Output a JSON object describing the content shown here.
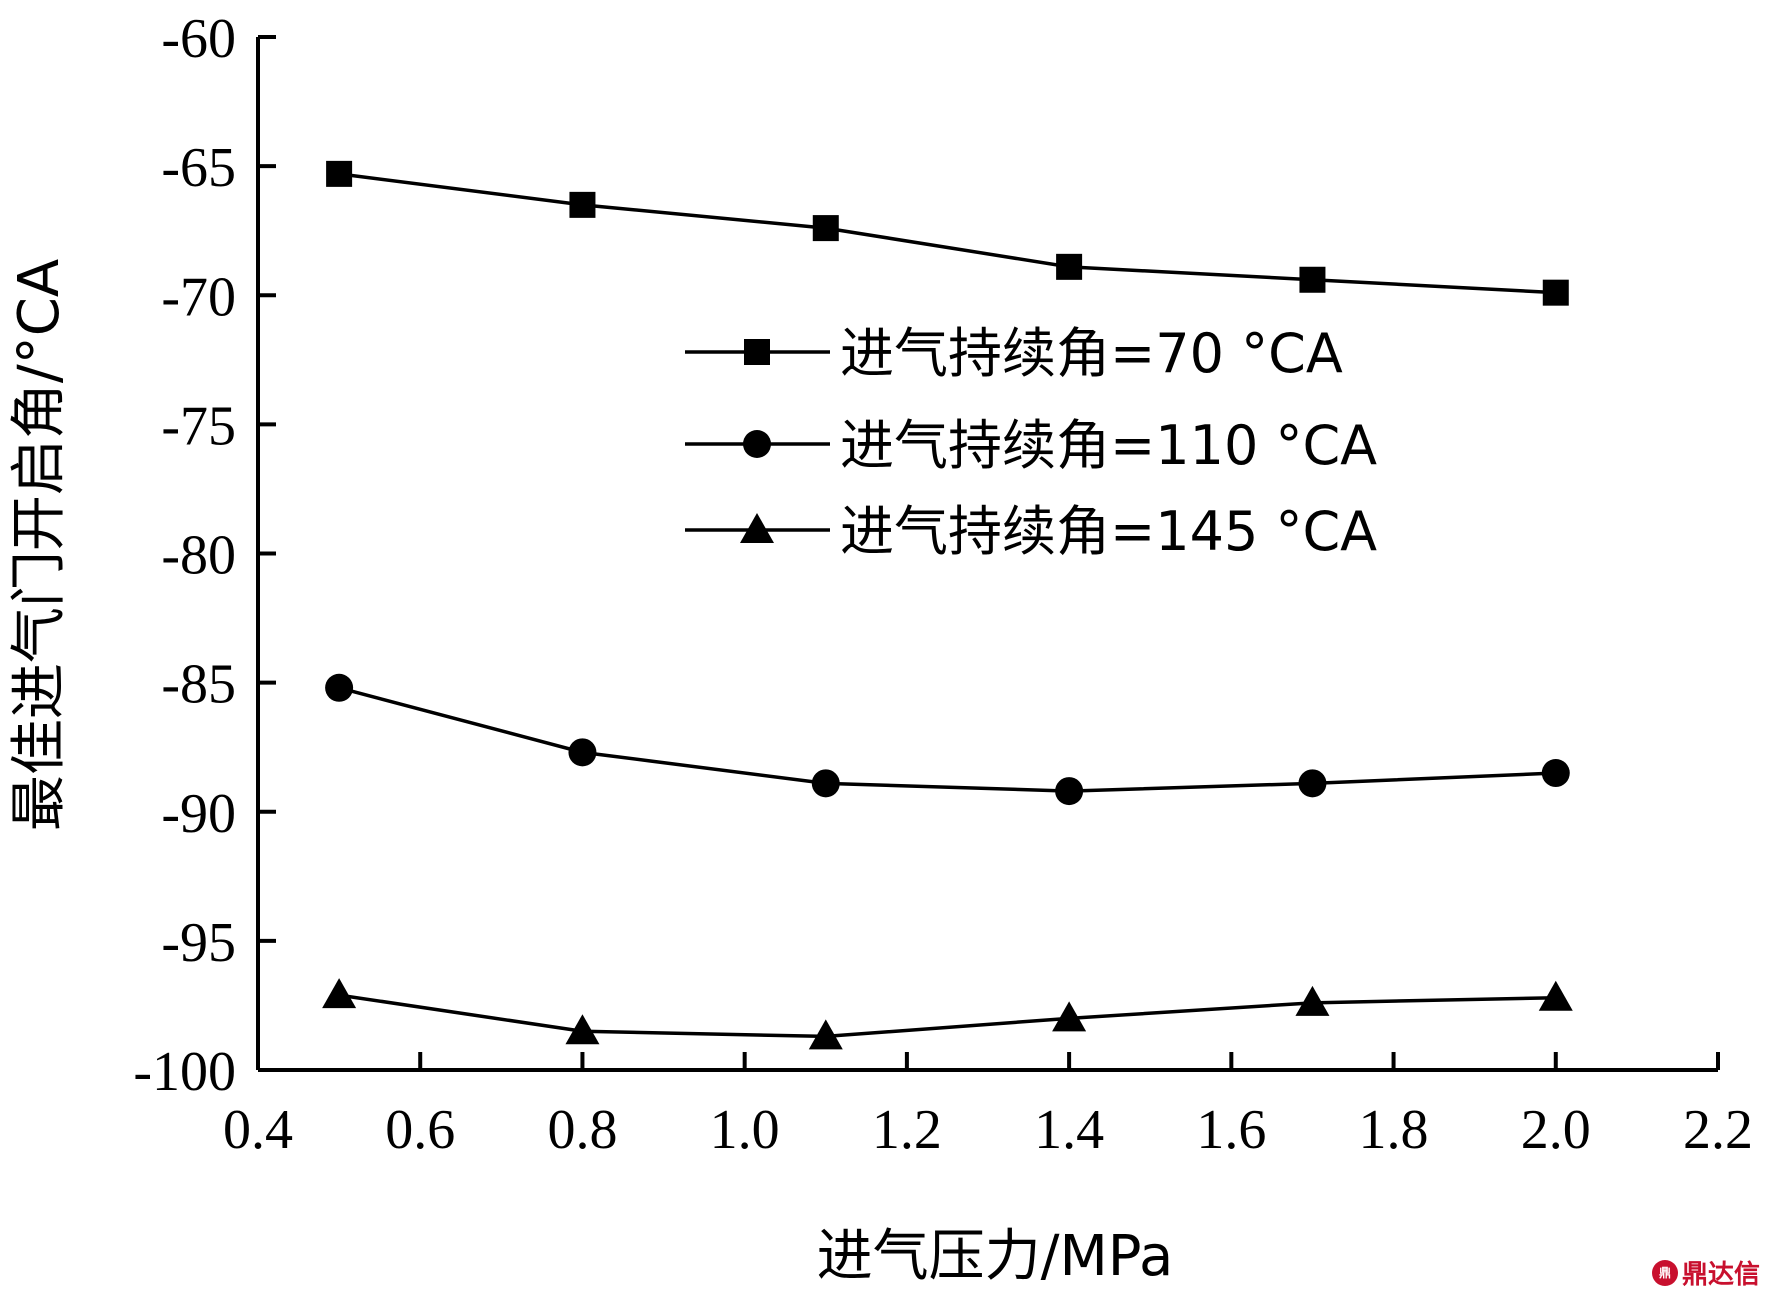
{
  "chart_data": {
    "type": "line",
    "xlabel": "进气压力/MPa",
    "ylabel": "最佳进气门开启角/°CA",
    "xlim": [
      0.4,
      2.2
    ],
    "ylim": [
      -100,
      -60
    ],
    "xticks": [
      "0.4",
      "0.6",
      "0.8",
      "1.0",
      "1.2",
      "1.4",
      "1.6",
      "1.8",
      "2.0",
      "2.2"
    ],
    "yticks": [
      "-60",
      "-65",
      "-70",
      "-75",
      "-80",
      "-85",
      "-90",
      "-95",
      "-100"
    ],
    "x": [
      0.5,
      0.8,
      1.1,
      1.4,
      1.7,
      2.0
    ],
    "series": [
      {
        "name": "进气持续角=70 °CA",
        "marker": "square",
        "values": [
          -65.3,
          -66.5,
          -67.4,
          -68.9,
          -69.4,
          -69.9
        ]
      },
      {
        "name": "进气持续角=110 °CA",
        "marker": "circle",
        "values": [
          -85.2,
          -87.7,
          -88.9,
          -89.2,
          -88.9,
          -88.5
        ]
      },
      {
        "name": "进气持续角=145 °CA",
        "marker": "triangle",
        "values": [
          -97.1,
          -98.5,
          -98.7,
          -98.0,
          -97.4,
          -97.2
        ]
      }
    ],
    "legend_position": "middle-right",
    "grid": false,
    "line_color": "#000000"
  },
  "watermark": {
    "logo": "鼎",
    "text": "鼎达信"
  }
}
